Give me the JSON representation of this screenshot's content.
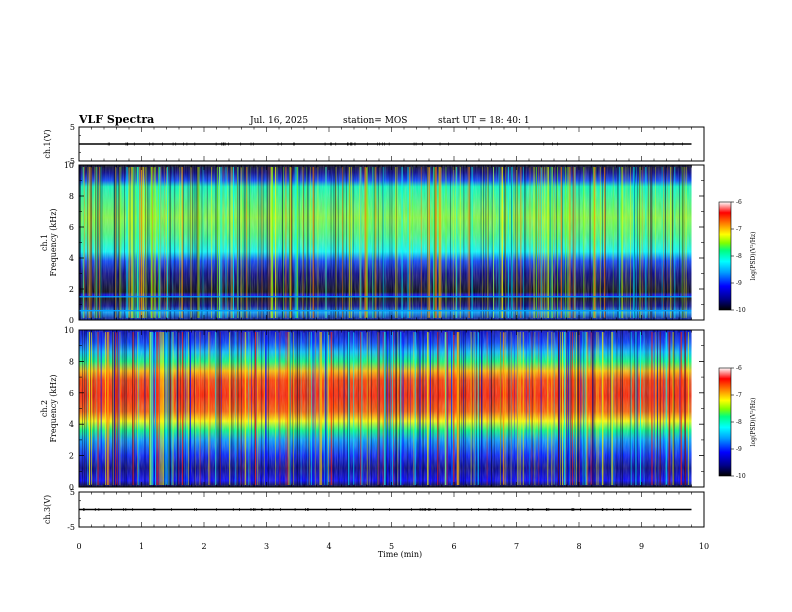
{
  "header": {
    "title": "VLF Spectra",
    "date": "Jul. 16, 2025",
    "station": "station= MOS",
    "start": "start UT =  18: 40: 1"
  },
  "chart_data": [
    {
      "type": "line",
      "id": "ch1-voltage",
      "ylabel": "ch.1(V)",
      "ylim": [
        -5,
        5
      ],
      "y_ticks": [
        "5",
        "-5"
      ],
      "series": [
        {
          "x": [
            0,
            9.8
          ],
          "y": [
            0,
            0
          ]
        }
      ],
      "color": "#000000"
    },
    {
      "type": "heatmap",
      "id": "ch1-spectrogram",
      "ylabel": "ch.1",
      "ylabel2": "Frequency (kHz)",
      "xlim": [
        0,
        10
      ],
      "ylim": [
        0,
        10
      ],
      "y_ticks": [
        "0",
        "2",
        "4",
        "6",
        "8",
        "10"
      ],
      "data_xmax": 9.8,
      "energy_band_khz": [
        4,
        9.5
      ],
      "quiet_band_khz": [
        1.5,
        4
      ],
      "tone_lines_khz": [
        1.5,
        0.6
      ],
      "colorbar": {
        "label": "log(PSD)(V²/Hz)",
        "ticks": [
          "-6",
          "-7",
          "-8",
          "-9",
          "-10"
        ],
        "range": [
          -10,
          -6
        ]
      }
    },
    {
      "type": "heatmap",
      "id": "ch2-spectrogram",
      "ylabel": "ch.2",
      "ylabel2": "Frequency (kHz)",
      "xlim": [
        0,
        10
      ],
      "ylim": [
        0,
        10
      ],
      "y_ticks": [
        "0",
        "2",
        "4",
        "6",
        "8",
        "10"
      ],
      "data_xmax": 9.8,
      "energy_band_khz": [
        3.5,
        8
      ],
      "peak_band_khz": [
        4.5,
        7.5
      ],
      "colorbar": {
        "label": "log(PSD)(V²/Hz)",
        "ticks": [
          "-6",
          "-7",
          "-8",
          "-9",
          "-10"
        ],
        "range": [
          -10,
          -6
        ]
      }
    },
    {
      "type": "line",
      "id": "ch3-voltage",
      "ylabel": "ch.3(V)",
      "ylim": [
        -5,
        5
      ],
      "y_ticks": [
        "5",
        "-5"
      ],
      "series": [
        {
          "x": [
            0,
            9.8
          ],
          "y": [
            0,
            0
          ]
        }
      ],
      "color": "#000000"
    }
  ],
  "x_axis": {
    "label": "Time (min)",
    "ticks": [
      "0",
      "1",
      "2",
      "3",
      "4",
      "5",
      "6",
      "7",
      "8",
      "9",
      "10"
    ]
  },
  "colormap": [
    "#000000",
    "#00008b",
    "#0000ff",
    "#00a0ff",
    "#00ffff",
    "#00ff80",
    "#80ff00",
    "#ffff00",
    "#ff8000",
    "#ff0000",
    "#ffffff"
  ]
}
